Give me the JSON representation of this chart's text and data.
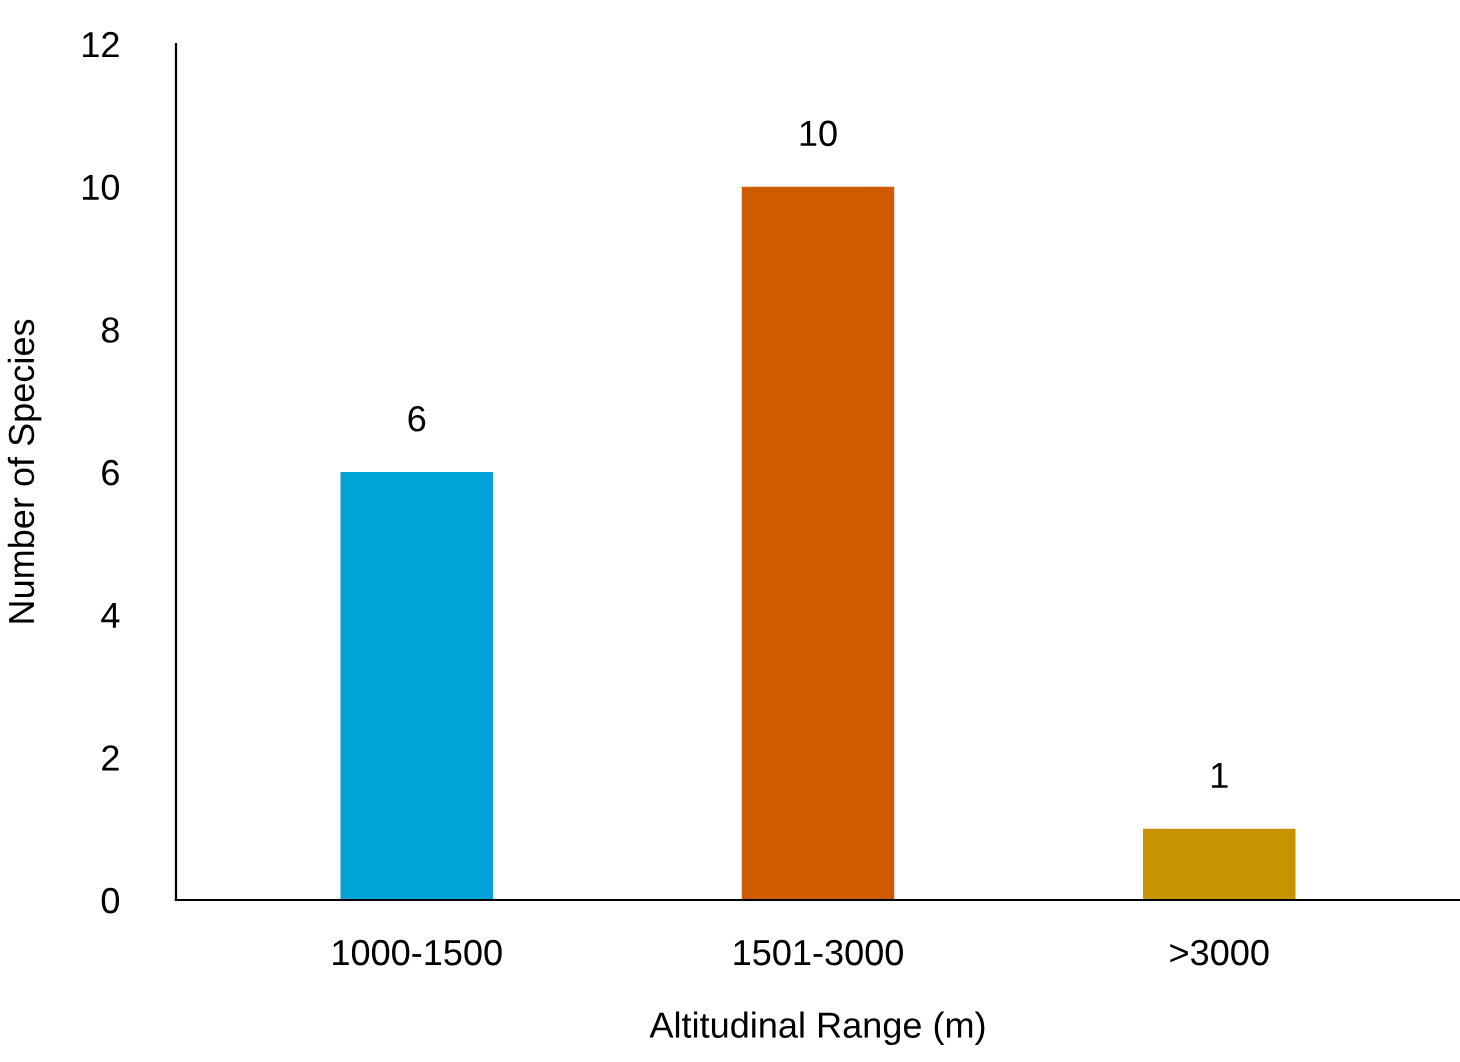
{
  "chart_data": {
    "type": "bar",
    "xlabel": "Altitudinal Range (m)",
    "ylabel": "Number of Species",
    "categories": [
      "1000-1500",
      "1501-3000",
      ">3000"
    ],
    "values": [
      6,
      10,
      1
    ],
    "colors": [
      "#00a3d6",
      "#cf5b00",
      "#c79400"
    ],
    "ylim": [
      0,
      12
    ],
    "yticks": [
      0,
      2,
      4,
      6,
      8,
      10,
      12
    ],
    "data_labels": true,
    "grid": false,
    "legend": false
  }
}
